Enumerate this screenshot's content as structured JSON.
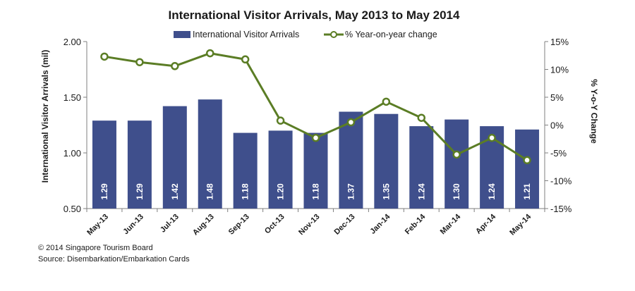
{
  "chart_data": {
    "type": "bar",
    "title": "International Visitor Arrivals, May 2013 to May 2014",
    "categories": [
      "May-13",
      "Jun-13",
      "Jul-13",
      "Aug-13",
      "Sep-13",
      "Oct-13",
      "Nov-13",
      "Dec-13",
      "Jan-14",
      "Feb-14",
      "Mar-14",
      "Apr-14",
      "May-14"
    ],
    "series": [
      {
        "name": "International Visitor Arrivals",
        "type": "bar",
        "axis": "left",
        "color": "#3f4f8c",
        "values": [
          1.29,
          1.29,
          1.42,
          1.48,
          1.18,
          1.2,
          1.18,
          1.37,
          1.35,
          1.24,
          1.3,
          1.24,
          1.21
        ],
        "labels": [
          "1.29",
          "1.29",
          "1.42",
          "1.48",
          "1.18",
          "1.20",
          "1.18",
          "1.37",
          "1.35",
          "1.24",
          "1.30",
          "1.24",
          "1.21"
        ]
      },
      {
        "name": "% Year-on-year change",
        "type": "line",
        "axis": "right",
        "color": "#5b7d25",
        "values": [
          12.3,
          11.3,
          10.6,
          12.9,
          11.8,
          0.8,
          -2.3,
          0.5,
          4.2,
          1.3,
          -5.3,
          -2.3,
          -6.3
        ]
      }
    ],
    "ylabel_left": "International Visitor Arrivals (mil)",
    "ylabel_right": "% Y-o-Y Change",
    "ylim_left": [
      0.5,
      2.0
    ],
    "ylim_right": [
      -15,
      15
    ],
    "yticks_left": [
      "0.50",
      "1.00",
      "1.50",
      "2.00"
    ],
    "yticks_right": [
      "-15%",
      "-10%",
      "-5%",
      "0%",
      "5%",
      "10%",
      "15%"
    ],
    "grid": false,
    "legend_placement": "top-center"
  },
  "footer": {
    "copyright": "© 2014 Singapore Tourism Board",
    "source": "Source: Disembarkation/Embarkation Cards"
  }
}
